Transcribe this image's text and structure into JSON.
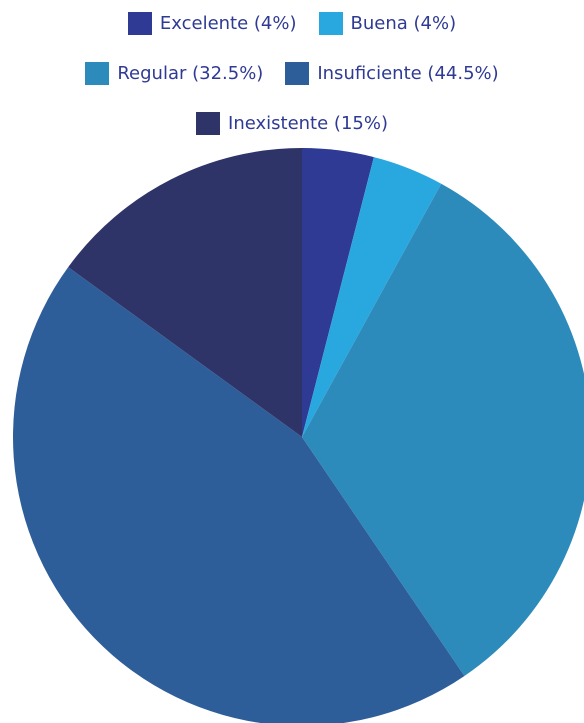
{
  "chart_data": {
    "type": "pie",
    "categories": [
      "Excelente (4%)",
      "Buena (4%)",
      "Regular (32.5%)",
      "Insuficiente (44.5%)",
      "Inexistente (15%)"
    ],
    "values": [
      4,
      4,
      32.5,
      44.5,
      15
    ],
    "colors": [
      "#2e3a94",
      "#29a8e0",
      "#2d8bbb",
      "#2e5e99",
      "#2f3468"
    ],
    "legend": "top"
  }
}
